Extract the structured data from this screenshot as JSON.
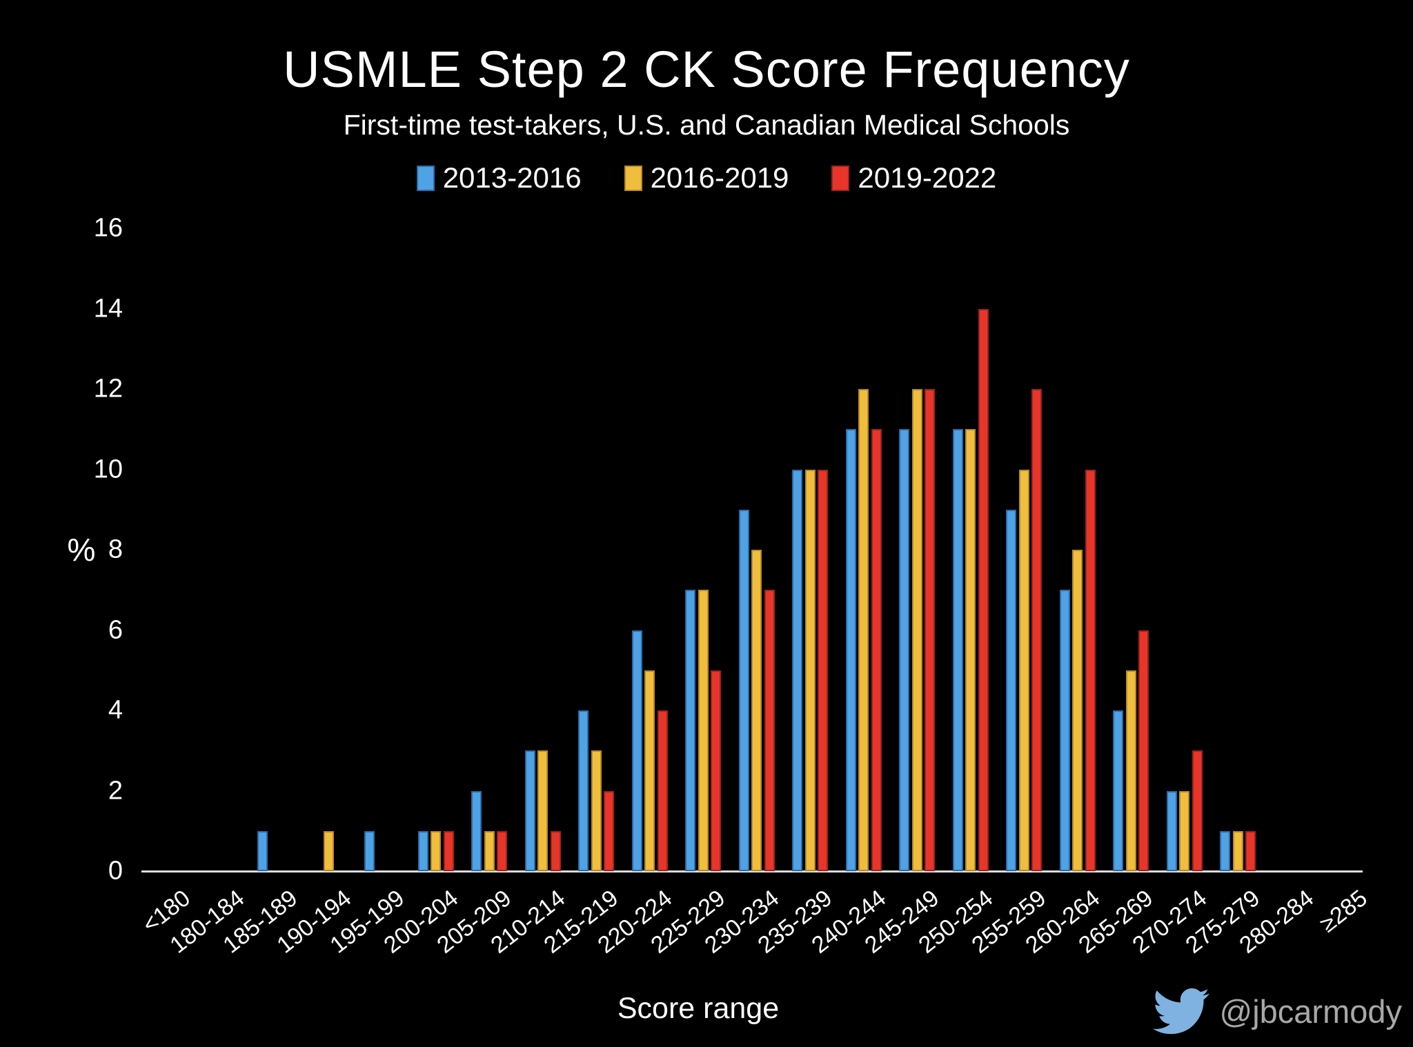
{
  "header": {
    "title": "USMLE Step 2 CK Score Frequency",
    "subtitle": "First-time test-takers, U.S. and Canadian Medical Schools"
  },
  "watermark": {
    "handle": "@jbcarmody",
    "icon": "twitter-bird-icon",
    "icon_color": "#7fb2e0",
    "text_color": "#a8a8a8"
  },
  "chart_data": {
    "type": "bar",
    "title": "USMLE Step 2 CK Score Frequency",
    "subtitle": "First-time test-takers, U.S. and Canadian Medical Schools",
    "xlabel": "Score range",
    "ylabel": "%",
    "ylim": [
      0,
      16
    ],
    "yticks": [
      0,
      2,
      4,
      6,
      8,
      10,
      12,
      14,
      16
    ],
    "grid": false,
    "legend_position": "top-center",
    "background": "#000000",
    "axis_line_color": "#dcdcdc",
    "categories": [
      "<180",
      "180-184",
      "185-189",
      "190-194",
      "195-199",
      "200-204",
      "205-209",
      "210-214",
      "215-219",
      "220-224",
      "225-229",
      "230-234",
      "235-239",
      "240-244",
      "245-249",
      "250-254",
      "255-259",
      "260-264",
      "265-269",
      "270-274",
      "275-279",
      "280-284",
      "≥285"
    ],
    "series": [
      {
        "name": "2013-2016",
        "color": "#4fa2e4",
        "border_color": "#2a6ca9",
        "values": [
          0,
          0,
          1,
          0,
          1,
          1,
          2,
          3,
          4,
          6,
          7,
          9,
          10,
          11,
          11,
          11,
          9,
          7,
          4,
          2,
          1,
          0,
          0
        ]
      },
      {
        "name": "2016-2019",
        "color": "#efbe3d",
        "border_color": "#b8892b",
        "values": [
          0,
          0,
          0,
          1,
          0,
          1,
          1,
          3,
          3,
          5,
          7,
          8,
          10,
          12,
          12,
          11,
          10,
          8,
          5,
          2,
          1,
          0,
          0
        ]
      },
      {
        "name": "2019-2022",
        "color": "#e8352a",
        "border_color": "#9e241c",
        "values": [
          0,
          0,
          0,
          0,
          0,
          1,
          1,
          1,
          2,
          4,
          5,
          7,
          10,
          11,
          12,
          14,
          12,
          10,
          6,
          3,
          1,
          0,
          0
        ]
      }
    ]
  }
}
